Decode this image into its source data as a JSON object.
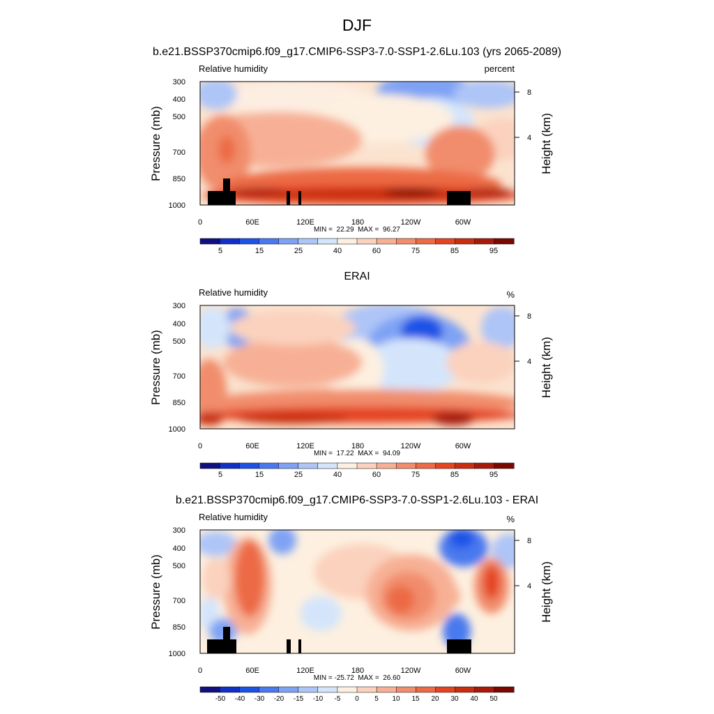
{
  "figure": {
    "title": "DJF"
  },
  "chart_data": [
    {
      "type": "heatmap",
      "title": "b.e21.BSSP370cmip6.f09_g17.CMIP6-SSP3-7.0-SSP1-2.6Lu.103 (yrs 2065-2089)",
      "left_label": "Relative humidity",
      "units": "percent",
      "ylabel": "Pressure (mb)",
      "y2label": "Height (km)",
      "stats": "MIN =  22.29  MAX =  96.27",
      "xticks": [
        "0",
        "60E",
        "120E",
        "180",
        "120W",
        "60W"
      ],
      "yticks": [
        "300",
        "400",
        "500",
        "700",
        "850",
        "1000"
      ],
      "y2ticks": [
        "8",
        "4"
      ],
      "colorbar_labels": [
        "5",
        "15",
        "25",
        "40",
        "60",
        "75",
        "85",
        "95"
      ],
      "colorbar_colors": [
        "#10107f",
        "#1030c8",
        "#1c52e6",
        "#4a79ef",
        "#7ea2f4",
        "#adc5f7",
        "#d4e5fb",
        "#fdf0e0",
        "#fbd2bd",
        "#f7b095",
        "#f18d6c",
        "#ec6a45",
        "#e44420",
        "#c82e10",
        "#a71a0a",
        "#7a0800"
      ],
      "surface_blocks": [
        [
          10,
          20
        ],
        [
          20,
          28
        ],
        [
          28,
          40
        ],
        [
          103,
          106
        ],
        [
          110,
          112
        ],
        [
          238,
          262
        ]
      ],
      "surface_heights": [
        1,
        1,
        1,
        1,
        1,
        1
      ]
    },
    {
      "type": "heatmap",
      "title": "ERAI",
      "left_label": "Relative humidity",
      "units": "%",
      "ylabel": "Pressure (mb)",
      "y2label": "Height (km)",
      "stats": "MIN =  17.22  MAX =  94.09",
      "xticks": [
        "0",
        "60E",
        "120E",
        "180",
        "120W",
        "60W"
      ],
      "yticks": [
        "300",
        "400",
        "500",
        "700",
        "850",
        "1000"
      ],
      "y2ticks": [
        "8",
        "4"
      ],
      "colorbar_labels": [
        "5",
        "15",
        "25",
        "40",
        "60",
        "75",
        "85",
        "95"
      ],
      "colorbar_colors": [
        "#10107f",
        "#1030c8",
        "#1c52e6",
        "#4a79ef",
        "#7ea2f4",
        "#adc5f7",
        "#d4e5fb",
        "#fdf0e0",
        "#fbd2bd",
        "#f7b095",
        "#f18d6c",
        "#ec6a45",
        "#e44420",
        "#c82e10",
        "#a71a0a",
        "#7a0800"
      ]
    },
    {
      "type": "heatmap",
      "title": "b.e21.BSSP370cmip6.f09_g17.CMIP6-SSP3-7.0-SSP1-2.6Lu.103 - ERAI",
      "left_label": "Relative humidity",
      "units": "%",
      "ylabel": "Pressure (mb)",
      "y2label": "Height (km)",
      "stats": "MIN = -25.72  MAX =  26.60",
      "xticks": [
        "0",
        "60E",
        "120E",
        "180",
        "120W",
        "60W"
      ],
      "yticks": [
        "300",
        "400",
        "500",
        "700",
        "850",
        "1000"
      ],
      "y2ticks": [
        "8",
        "4"
      ],
      "colorbar_labels": [
        "-50",
        "-40",
        "-30",
        "-20",
        "-15",
        "-10",
        "-5",
        "0",
        "5",
        "10",
        "15",
        "20",
        "30",
        "40",
        "50"
      ],
      "colorbar_colors": [
        "#10107f",
        "#1030c8",
        "#1c52e6",
        "#4a79ef",
        "#7ea2f4",
        "#adc5f7",
        "#d4e5fb",
        "#fdf0e0",
        "#fbd2bd",
        "#f7b095",
        "#f18d6c",
        "#ec6a45",
        "#e44420",
        "#c82e10",
        "#a71a0a",
        "#7a0800"
      ]
    }
  ]
}
